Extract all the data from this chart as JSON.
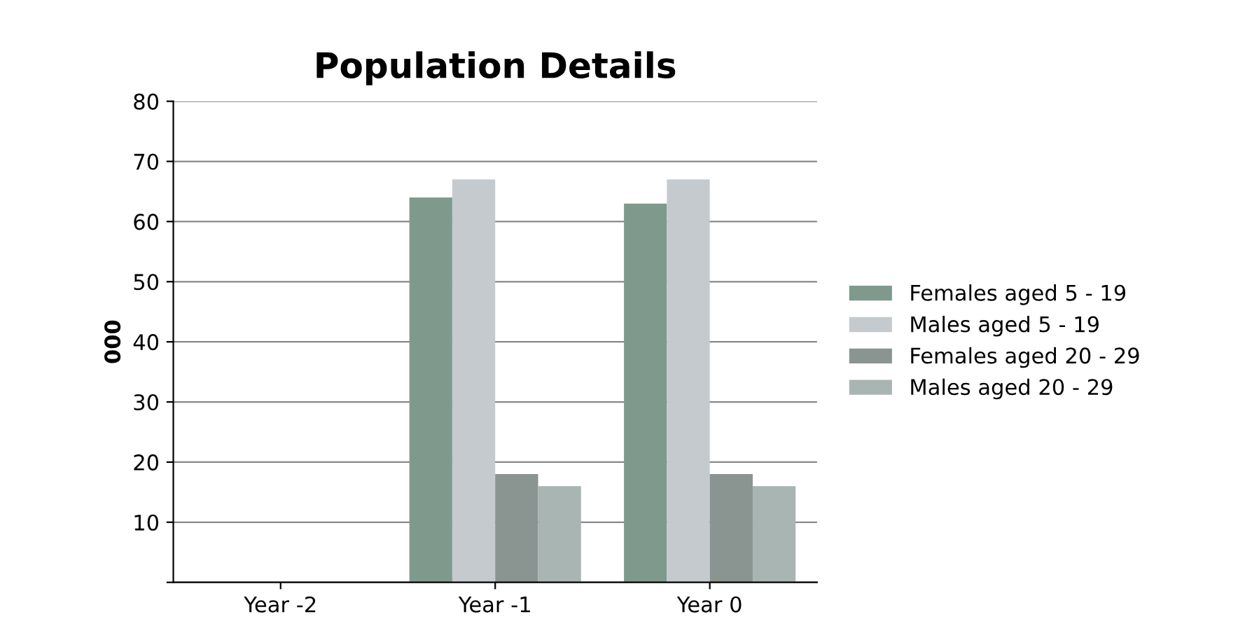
{
  "chart_data": {
    "type": "bar",
    "title": "Population Details",
    "ylabel": "000",
    "categories": [
      "Year -2",
      "Year -1",
      "Year 0"
    ],
    "series": [
      {
        "name": "Females aged 5 - 19",
        "color": "#7f9a8c",
        "values": [
          null,
          64,
          63
        ]
      },
      {
        "name": "Males aged 5 - 19",
        "color": "#c4cacd",
        "values": [
          null,
          67,
          67
        ]
      },
      {
        "name": "Females aged 20 - 29",
        "color": "#8a9490",
        "values": [
          null,
          18,
          18
        ]
      },
      {
        "name": "Males aged 20 - 29",
        "color": "#a9b5b3",
        "values": [
          null,
          16,
          16
        ]
      }
    ],
    "ylim": [
      0,
      80
    ],
    "yticks": [
      {
        "value": 0,
        "label": null
      },
      10,
      20,
      30,
      40,
      50,
      60,
      70,
      80
    ],
    "grid": "y",
    "legend": "right"
  }
}
